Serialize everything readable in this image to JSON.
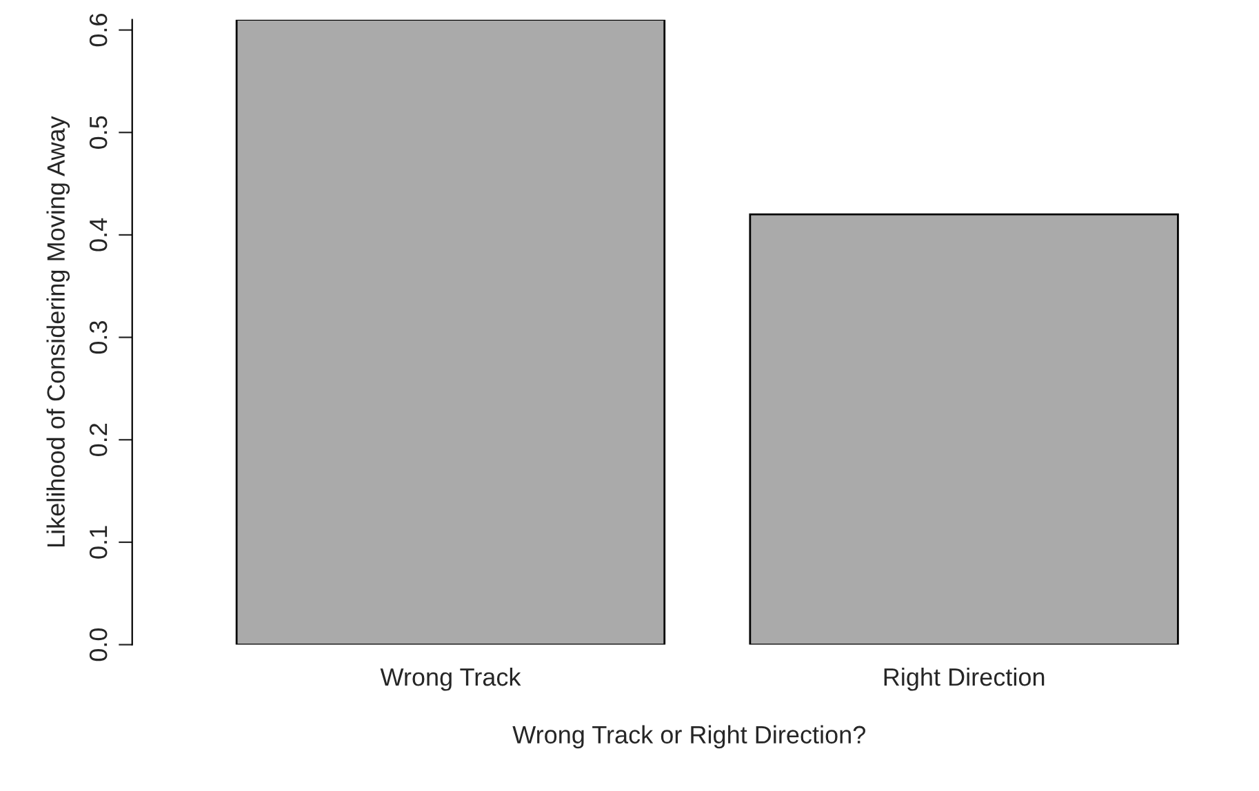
{
  "chart_data": {
    "type": "bar",
    "categories": [
      "Wrong Track",
      "Right Direction"
    ],
    "values": [
      0.61,
      0.42
    ],
    "color": "#aaaaaa",
    "xlabel": "Wrong Track or Right Direction?",
    "ylabel": "Likelihood of Considering Moving Away",
    "ylim": [
      0.0,
      0.61
    ],
    "yticks": [
      {
        "value": 0,
        "label": "0.0"
      },
      0.1,
      0.2,
      0.3,
      0.4,
      0.5,
      0.6
    ],
    "grid": false,
    "legend": false
  }
}
